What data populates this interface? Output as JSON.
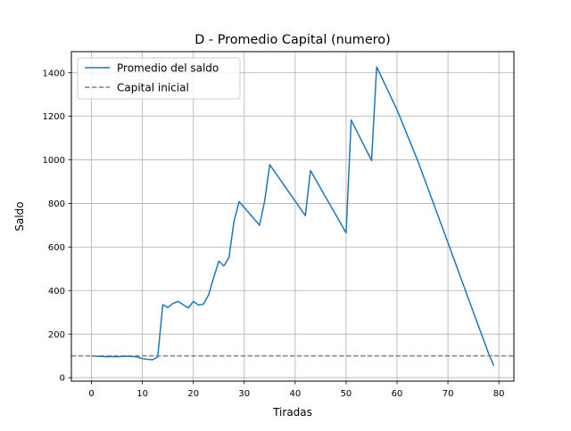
{
  "chart_data": {
    "type": "line",
    "title": "D - Promedio Capital (numero)",
    "xlabel": "Tiradas",
    "ylabel": "Saldo",
    "xlim": [
      -3.95,
      82.95
    ],
    "ylim": [
      -16,
      1497
    ],
    "xticks": [
      0,
      10,
      20,
      30,
      40,
      50,
      60,
      70,
      80
    ],
    "yticks": [
      0,
      200,
      400,
      600,
      800,
      1000,
      1200,
      1400
    ],
    "grid": true,
    "legend_position": "upper left",
    "series": [
      {
        "name": "Promedio del saldo",
        "style": "solid",
        "color": "#1f77b4",
        "x": [
          0,
          1,
          2,
          3,
          4,
          5,
          6,
          7,
          8,
          9,
          10,
          11,
          12,
          13,
          14,
          15,
          16,
          17,
          18,
          19,
          20,
          21,
          22,
          23,
          24,
          25,
          26,
          27,
          28,
          29,
          33,
          34,
          35,
          42,
          43,
          50,
          51,
          55,
          56,
          60,
          64,
          70,
          75,
          78,
          79
        ],
        "y": [
          100,
          98,
          97,
          96,
          97,
          96,
          97,
          98,
          97,
          95,
          87,
          84,
          82,
          95,
          335,
          322,
          341,
          350,
          335,
          320,
          350,
          333,
          338,
          380,
          460,
          535,
          513,
          552,
          720,
          808,
          700,
          810,
          978,
          744,
          951,
          665,
          1183,
          997,
          1427,
          1230,
          1000,
          620,
          300,
          110,
          55
        ]
      },
      {
        "name": "Capital inicial",
        "style": "dashed",
        "color": "#808080",
        "constant": 100
      }
    ]
  }
}
